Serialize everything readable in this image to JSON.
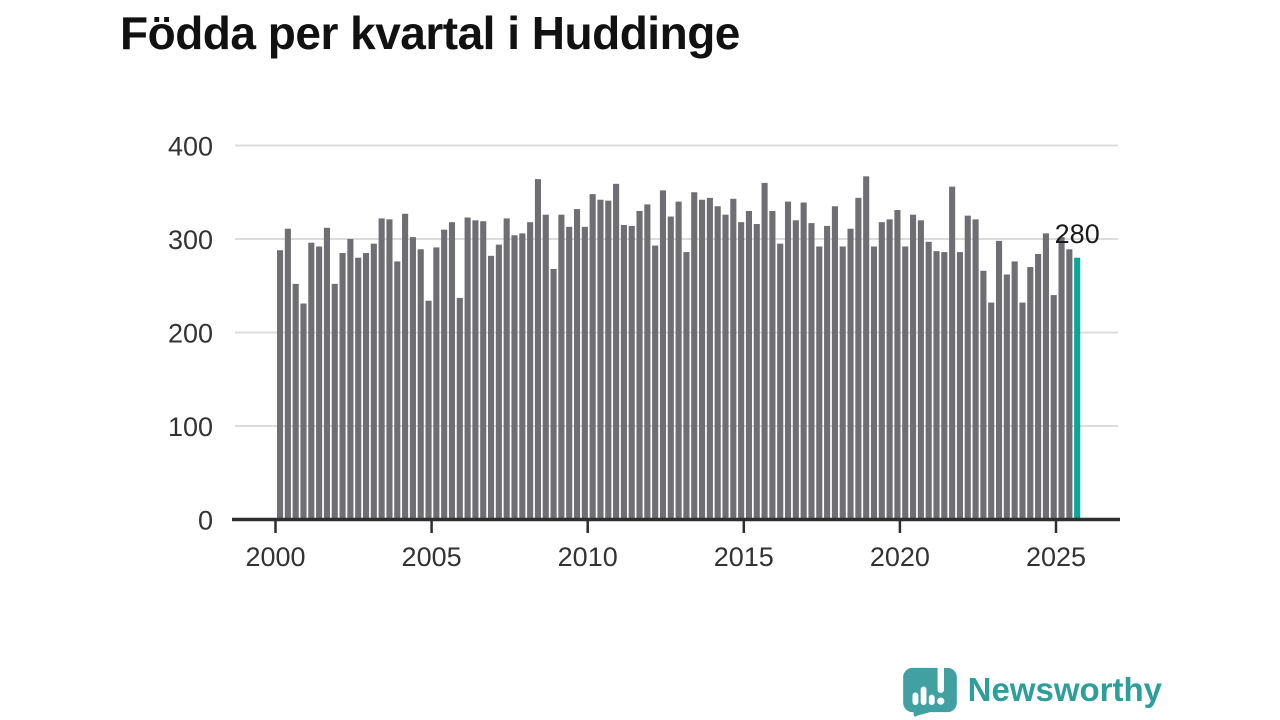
{
  "title": "Födda per kvartal i Huddinge",
  "annotation": {
    "last_value_label": "280"
  },
  "branding": {
    "wordmark": "Newsworthy",
    "icon": "speech-bubble-bar-chart-exclamation"
  },
  "colors": {
    "background": "#ffffff",
    "bar": "#6e6e73",
    "highlight": "#0ba69b",
    "grid": "#dcdcdc",
    "axis": "#2e2e2e",
    "tick_label": "#333333",
    "title": "#111111",
    "annotation": "#1a1a1a",
    "brand_icon": "#40a0a2",
    "brand_text": "#2d9e99"
  },
  "chart_data": {
    "type": "bar",
    "title": "Födda per kvartal i Huddinge",
    "xlabel": "",
    "ylabel": "",
    "x_start": {
      "year": 2000,
      "quarter": 1
    },
    "x_end": {
      "year": 2025,
      "quarter": 3
    },
    "values": [
      288,
      311,
      252,
      231,
      296,
      292,
      312,
      252,
      285,
      300,
      280,
      285,
      295,
      322,
      321,
      276,
      327,
      302,
      289,
      234,
      291,
      310,
      318,
      237,
      323,
      320,
      319,
      282,
      294,
      322,
      304,
      306,
      318,
      364,
      326,
      268,
      326,
      313,
      332,
      313,
      348,
      342,
      341,
      359,
      315,
      314,
      330,
      337,
      293,
      352,
      324,
      340,
      286,
      350,
      342,
      344,
      335,
      326,
      343,
      318,
      330,
      316,
      360,
      330,
      295,
      340,
      320,
      339,
      317,
      292,
      314,
      335,
      292,
      311,
      344,
      367,
      292,
      318,
      321,
      331,
      292,
      326,
      320,
      297,
      287,
      286,
      356,
      286,
      325,
      321,
      266,
      232,
      298,
      262,
      276,
      232,
      270,
      284,
      306,
      240,
      302,
      289,
      280
    ],
    "highlight_index": 102,
    "highlight_value_label": "280",
    "x_ticks": [
      2000,
      2005,
      2010,
      2015,
      2020,
      2025
    ],
    "y_ticks": [
      0,
      100,
      200,
      300,
      400
    ],
    "ylim": [
      0,
      400
    ],
    "grid": "horizontal",
    "legend": "none"
  }
}
